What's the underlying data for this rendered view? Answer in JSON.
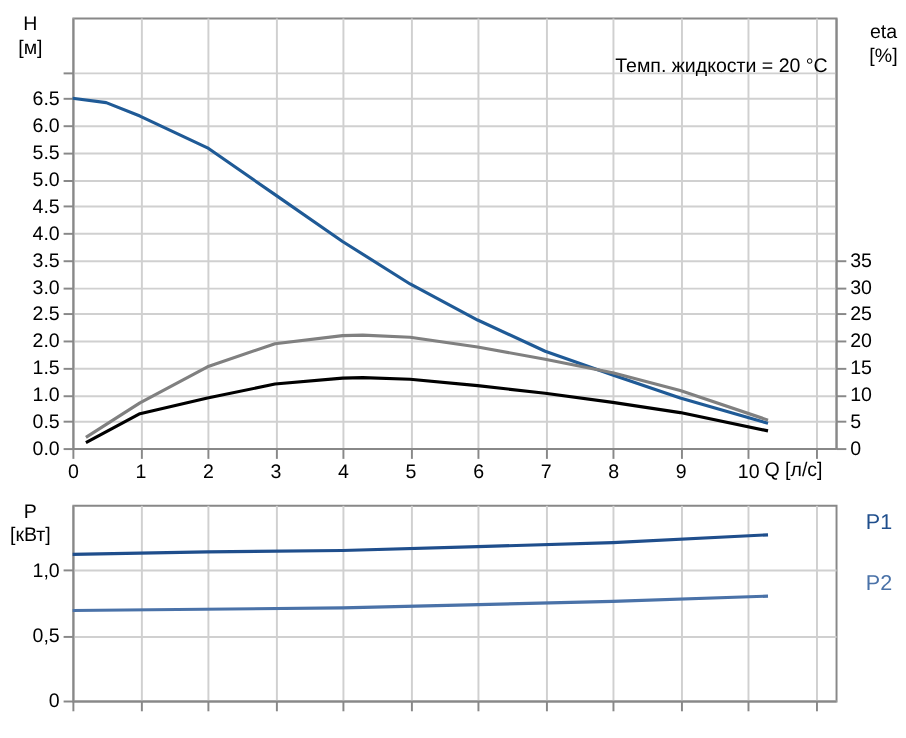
{
  "chart_data": [
    {
      "type": "line",
      "xlabel": "Q [л/с]",
      "ylabel": "H [м]",
      "y2label": "eta [%]",
      "grid": true,
      "legend": false,
      "annotations": [
        "Темп. жидкости = 20 °C"
      ],
      "xlim": [
        0,
        11.3
      ],
      "xticks": [
        0,
        1,
        2,
        3,
        4,
        5,
        6,
        7,
        8,
        9,
        10,
        {
          "value": 11,
          "label": null
        }
      ],
      "ylim": [
        0,
        8
      ],
      "yticks": [
        {
          "value": 0,
          "label": "0.0"
        },
        0.5,
        {
          "value": 1,
          "label": "1.0"
        },
        1.5,
        {
          "value": 2,
          "label": "2.0"
        },
        2.5,
        {
          "value": 3,
          "label": "3.0"
        },
        3.5,
        {
          "value": 4,
          "label": "4.0"
        },
        4.5,
        {
          "value": 5,
          "label": "5.0"
        },
        5.5,
        {
          "value": 6,
          "label": "6.0"
        },
        6.5,
        {
          "value": 7,
          "label": null
        }
      ],
      "y2lim": [
        0,
        80
      ],
      "y2ticks": [
        0,
        5,
        10,
        15,
        20,
        25,
        30,
        35
      ],
      "series": [
        {
          "color": "#1f5a96",
          "x": [
            0,
            0.5,
            1,
            2,
            3,
            4,
            5,
            6,
            7,
            8,
            9,
            10.3
          ],
          "values": [
            6.5,
            6.42,
            6.17,
            5.58,
            4.71,
            3.84,
            3.05,
            2.38,
            1.8,
            1.36,
            0.93,
            0.46
          ]
        },
        {
          "color": "#808080",
          "axis": "y2",
          "x": [
            0.2,
            1,
            2,
            3,
            4,
            4.3,
            5,
            6,
            7,
            8,
            9,
            10.3
          ],
          "values": [
            2,
            8.4,
            15.1,
            19.4,
            20.9,
            21,
            20.6,
            18.8,
            16.5,
            14,
            10.7,
            5.2
          ]
        },
        {
          "color": "#000000",
          "axis": "y2",
          "x": [
            0.2,
            1,
            2,
            3,
            4,
            4.3,
            5,
            6,
            7,
            8,
            9,
            10.3
          ],
          "values": [
            1,
            6.4,
            9.3,
            11.9,
            13,
            13.1,
            12.8,
            11.6,
            10.2,
            8.5,
            6.6,
            3.2
          ]
        }
      ]
    },
    {
      "type": "line",
      "ylabel": "P [кВт]",
      "grid": true,
      "legend": false,
      "tick_labels": "y",
      "xlim": [
        0,
        11.3
      ],
      "xticks": [
        0,
        1,
        2,
        3,
        4,
        5,
        6,
        7,
        8,
        9,
        10,
        11
      ],
      "ylim": [
        0,
        1.5
      ],
      "yticks": [
        0,
        {
          "value": 0.5,
          "label": "0,5"
        },
        {
          "value": 1,
          "label": "1,0"
        }
      ],
      "series": [
        {
          "name": "P1",
          "color": "#1f4e8c",
          "x": [
            0,
            2,
            4,
            6,
            8,
            10.3
          ],
          "values": [
            1.12,
            1.14,
            1.15,
            1.18,
            1.21,
            1.27
          ]
        },
        {
          "name": "P2",
          "color": "#4a72a8",
          "x": [
            0,
            4,
            8,
            10.3
          ],
          "values": [
            0.69,
            0.71,
            0.76,
            0.8
          ]
        }
      ]
    }
  ]
}
